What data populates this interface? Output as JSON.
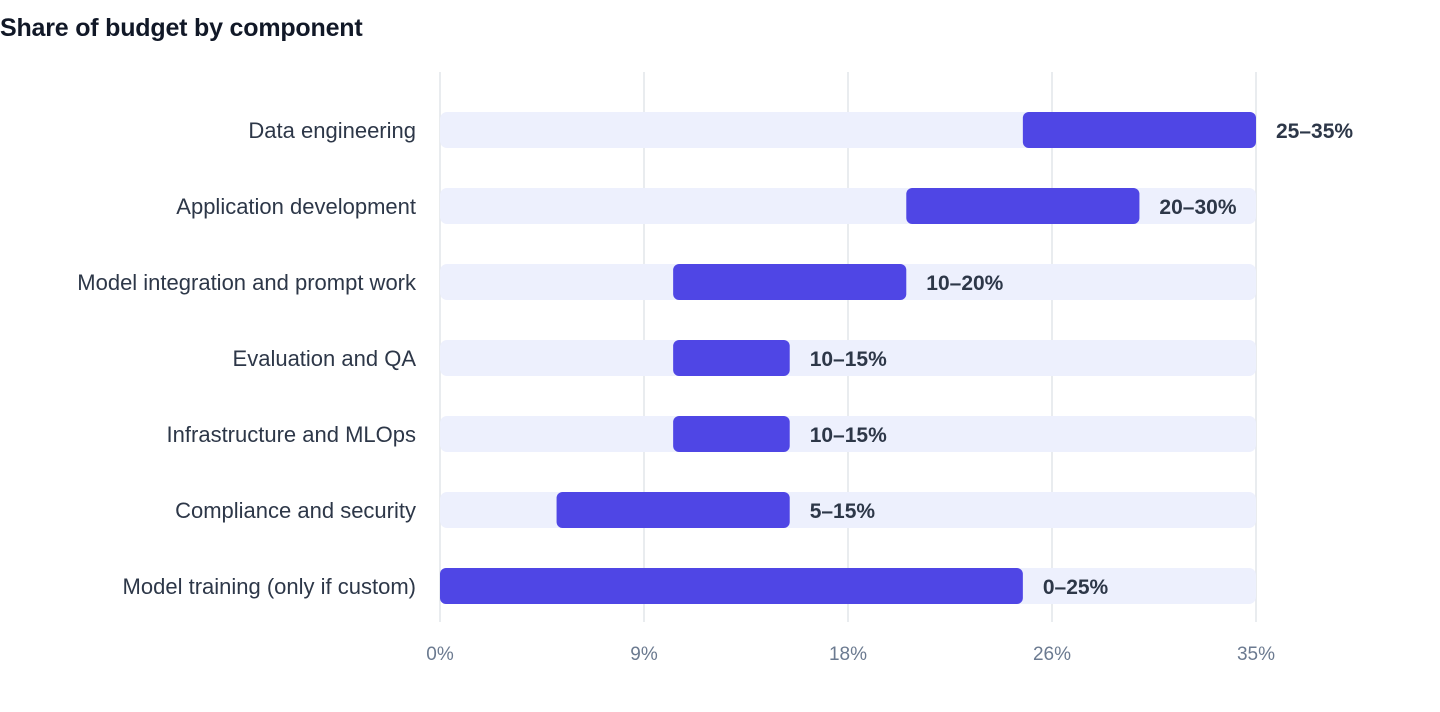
{
  "chart_data": {
    "type": "bar",
    "subtype": "floating-range-horizontal",
    "title": "Share of budget by component",
    "xlabel": "",
    "ylabel": "",
    "categories": [
      "Data engineering",
      "Application development",
      "Model integration and prompt work",
      "Evaluation and QA",
      "Infrastructure and MLOps",
      "Compliance and security",
      "Model training (only if custom)"
    ],
    "ranges": [
      [
        25,
        35
      ],
      [
        20,
        30
      ],
      [
        10,
        20
      ],
      [
        10,
        15
      ],
      [
        10,
        15
      ],
      [
        5,
        15
      ],
      [
        0,
        25
      ]
    ],
    "value_labels": [
      "25–35%",
      "20–30%",
      "10–20%",
      "10–15%",
      "10–15%",
      "5–15%",
      "0–25%"
    ],
    "xlim": [
      0,
      35
    ],
    "x_ticks": [
      0,
      8.75,
      17.5,
      26.25,
      35
    ],
    "x_tick_labels": [
      "0%",
      "9%",
      "18%",
      "26%",
      "35%"
    ],
    "grid": true,
    "legend": "none",
    "colors": {
      "bar": "#4f46e5",
      "track": "#edf0fd",
      "grid": "#e2e5ea",
      "text": "#2d3748",
      "tick_text": "#6b7a90",
      "title": "#111827"
    }
  }
}
